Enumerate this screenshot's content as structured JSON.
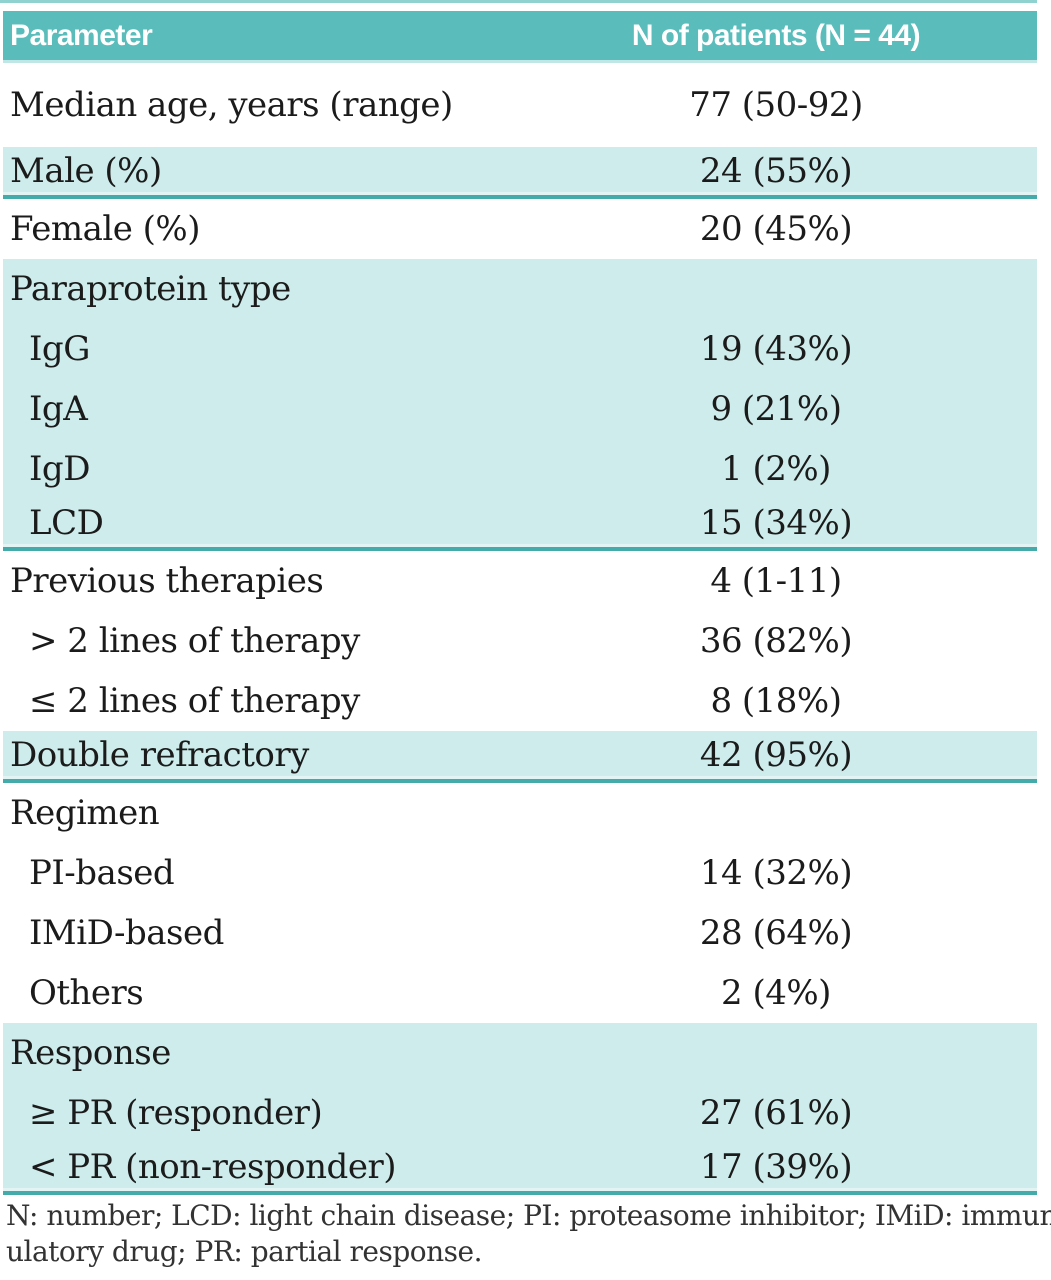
{
  "table": {
    "columns": [
      "Parameter",
      "N of patients (N = 44)"
    ],
    "rows": [
      {
        "label": "Median age, years (range)",
        "value": "77 (50-92)",
        "indent": false,
        "shaded": false,
        "section_end": false
      },
      {
        "label": "Male (%)",
        "value": "24 (55%)",
        "indent": false,
        "shaded": true,
        "section_end": true
      },
      {
        "label": "Female (%)",
        "value": "20 (45%)",
        "indent": false,
        "shaded": false,
        "section_end": false
      },
      {
        "label": "Paraprotein type",
        "value": "",
        "indent": false,
        "shaded": true,
        "section_end": false
      },
      {
        "label": "IgG",
        "value": "19 (43%)",
        "indent": true,
        "shaded": true,
        "section_end": false
      },
      {
        "label": "IgA",
        "value": "9 (21%)",
        "indent": true,
        "shaded": true,
        "section_end": false
      },
      {
        "label": "IgD",
        "value": "1 (2%)",
        "indent": true,
        "shaded": true,
        "section_end": false
      },
      {
        "label": "LCD",
        "value": "15 (34%)",
        "indent": true,
        "shaded": true,
        "section_end": true
      },
      {
        "label": "Previous therapies",
        "value": "4 (1-11)",
        "indent": false,
        "shaded": false,
        "section_end": false
      },
      {
        "label": "> 2 lines of therapy",
        "value": "36 (82%)",
        "indent": true,
        "shaded": false,
        "section_end": false
      },
      {
        "label": "≤ 2 lines of therapy",
        "value": "8 (18%)",
        "indent": true,
        "shaded": false,
        "section_end": false
      },
      {
        "label": "Double refractory",
        "value": "42 (95%)",
        "indent": false,
        "shaded": true,
        "section_end": true
      },
      {
        "label": "Regimen",
        "value": "",
        "indent": false,
        "shaded": false,
        "section_end": false
      },
      {
        "label": "PI-based",
        "value": "14 (32%)",
        "indent": true,
        "shaded": false,
        "section_end": false
      },
      {
        "label": "IMiD-based",
        "value": "28 (64%)",
        "indent": true,
        "shaded": false,
        "section_end": false
      },
      {
        "label": "Others",
        "value": "2 (4%)",
        "indent": true,
        "shaded": false,
        "section_end": false
      },
      {
        "label": "Response",
        "value": "",
        "indent": false,
        "shaded": true,
        "section_end": false
      },
      {
        "label": "≥ PR (responder)",
        "value": "27 (61%)",
        "indent": true,
        "shaded": true,
        "section_end": false
      },
      {
        "label": "< PR (non-responder)",
        "value": "17 (39%)",
        "indent": true,
        "shaded": true,
        "section_end": true
      }
    ]
  },
  "footnote": {
    "line1": "N: number; LCD: light chain disease; PI: proteasome inhibitor; IMiD: immunomod-",
    "line2": "ulatory drug; PR: partial response."
  },
  "colors": {
    "header_bg": "#5abdbb",
    "shaded_row_bg": "#cdeceb",
    "separator_line": "#44aaaa",
    "top_border": "#8fd2d0",
    "header_underline": "#bfe7e6",
    "header_text": "#ffffff",
    "body_text": "#1b1b1b",
    "footnote_text": "#333333"
  }
}
